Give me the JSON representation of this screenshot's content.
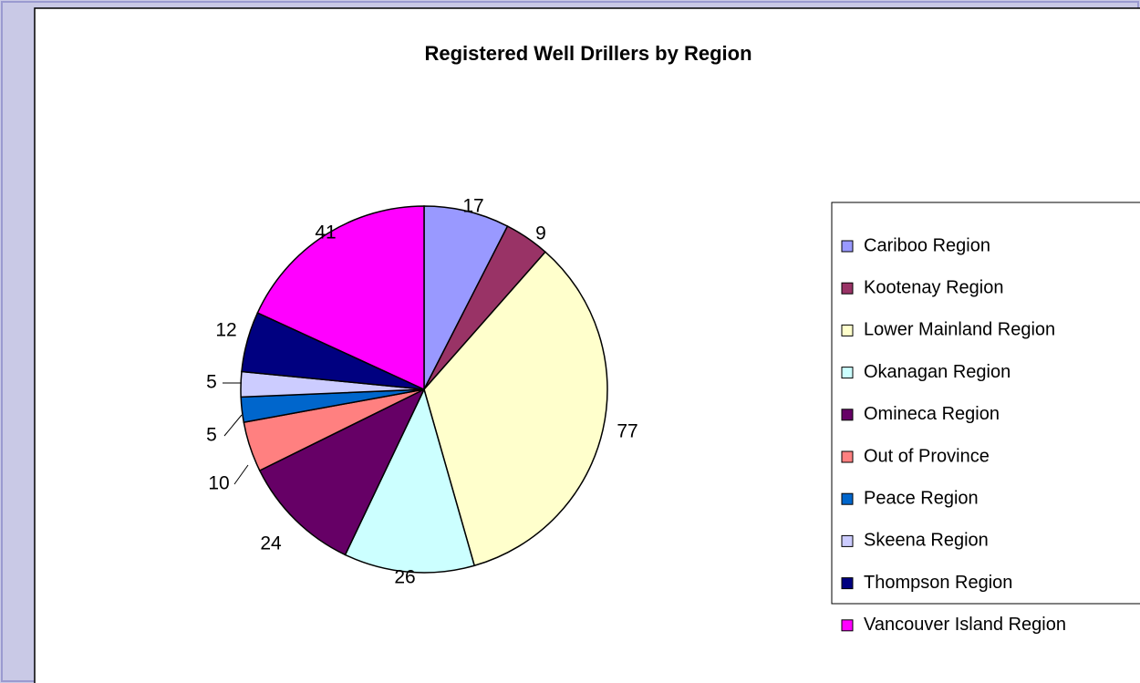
{
  "chart_data": {
    "type": "pie",
    "title": "Registered Well Drillers by Region",
    "categories": [
      "Cariboo Region",
      "Kootenay Region",
      "Lower Mainland Region",
      "Okanagan Region",
      "Omineca Region",
      "Out of Province",
      "Peace Region",
      "Skeena Region",
      "Thompson Region",
      "Vancouver Island Region"
    ],
    "values": [
      17,
      9,
      77,
      26,
      24,
      10,
      5,
      5,
      12,
      41
    ],
    "colors": [
      "#9999ff",
      "#993366",
      "#ffffcc",
      "#ccffff",
      "#660066",
      "#ff8080",
      "#0066cc",
      "#ccccff",
      "#000080",
      "#ff00ff"
    ],
    "legend": "right"
  }
}
